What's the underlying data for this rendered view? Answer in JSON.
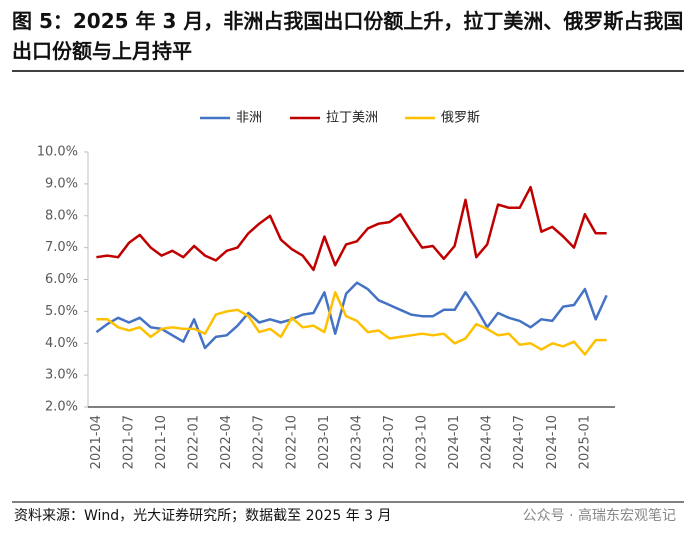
{
  "title": "图 5：2025 年 3 月，非洲占我国出口份额上升，拉丁美洲、俄罗斯占我国出口份额与上月持平",
  "source": "资料来源：Wind，光大证券研究所；数据截至 2025 年 3 月",
  "watermark": "公众号 · 高瑞东宏观笔记",
  "chart_data": {
    "type": "line",
    "categories": [
      "2021-04",
      null,
      null,
      "2021-07",
      null,
      null,
      "2021-10",
      null,
      null,
      "2022-01",
      null,
      null,
      "2022-04",
      null,
      null,
      "2022-07",
      null,
      null,
      "2022-10",
      null,
      null,
      "2023-01",
      null,
      null,
      "2023-04",
      null,
      null,
      "2023-07",
      null,
      null,
      "2023-10",
      null,
      null,
      "2024-01",
      null,
      null,
      "2024-04",
      null,
      null,
      "2024-07",
      null,
      null,
      "2024-10",
      null,
      null,
      "2025-01",
      null,
      null
    ],
    "series": [
      {
        "name": "非洲",
        "color": "#4472c4",
        "values": [
          4.35,
          4.6,
          4.8,
          4.65,
          4.8,
          4.5,
          4.45,
          4.25,
          4.05,
          4.75,
          3.85,
          4.2,
          4.25,
          4.55,
          4.95,
          4.65,
          4.75,
          4.65,
          4.75,
          4.9,
          4.95,
          5.6,
          4.3,
          5.55,
          5.9,
          5.7,
          5.35,
          5.2,
          5.05,
          4.9,
          4.85,
          4.85,
          5.05,
          5.05,
          5.6,
          5.1,
          4.5,
          4.95,
          4.8,
          4.7,
          4.5,
          4.75,
          4.7,
          5.15,
          5.2,
          5.7,
          4.75,
          5.5
        ]
      },
      {
        "name": "拉丁美洲",
        "color": "#c00000",
        "values": [
          6.7,
          6.75,
          6.7,
          7.15,
          7.4,
          7.0,
          6.75,
          6.9,
          6.7,
          7.05,
          6.75,
          6.6,
          6.9,
          7.0,
          7.45,
          7.75,
          8.0,
          7.25,
          6.95,
          6.75,
          6.3,
          7.35,
          6.45,
          7.1,
          7.2,
          7.6,
          7.75,
          7.8,
          8.05,
          7.5,
          7.0,
          7.05,
          6.65,
          7.05,
          8.5,
          6.7,
          7.1,
          8.35,
          8.25,
          8.25,
          8.9,
          7.5,
          7.65,
          7.35,
          7.0,
          8.05,
          7.45,
          7.45
        ]
      },
      {
        "name": "俄罗斯",
        "color": "#ffc000",
        "values": [
          4.75,
          4.75,
          4.5,
          4.4,
          4.5,
          4.2,
          4.45,
          4.5,
          4.45,
          4.45,
          4.3,
          4.9,
          5.0,
          5.05,
          4.85,
          4.35,
          4.45,
          4.2,
          4.8,
          4.5,
          4.55,
          4.35,
          5.6,
          4.85,
          4.7,
          4.35,
          4.4,
          4.15,
          4.2,
          4.25,
          4.3,
          4.25,
          4.3,
          4.0,
          4.15,
          4.6,
          4.45,
          4.25,
          4.3,
          3.95,
          4.0,
          3.8,
          4.0,
          3.9,
          4.05,
          3.65,
          4.1,
          4.1
        ]
      }
    ],
    "ylim": [
      2,
      10
    ],
    "yticks": [
      {
        "value": 2,
        "label": "2.0%"
      },
      {
        "value": 3,
        "label": "3.0%"
      },
      {
        "value": 4,
        "label": "4.0%"
      },
      {
        "value": 5,
        "label": "5.0%"
      },
      {
        "value": 6,
        "label": "6.0%"
      },
      {
        "value": 7,
        "label": "7.0%"
      },
      {
        "value": 8,
        "label": "8.0%"
      },
      {
        "value": 9,
        "label": "9.0%"
      },
      {
        "value": 10,
        "label": "10.0%"
      }
    ],
    "grid": false,
    "legend": "top"
  }
}
